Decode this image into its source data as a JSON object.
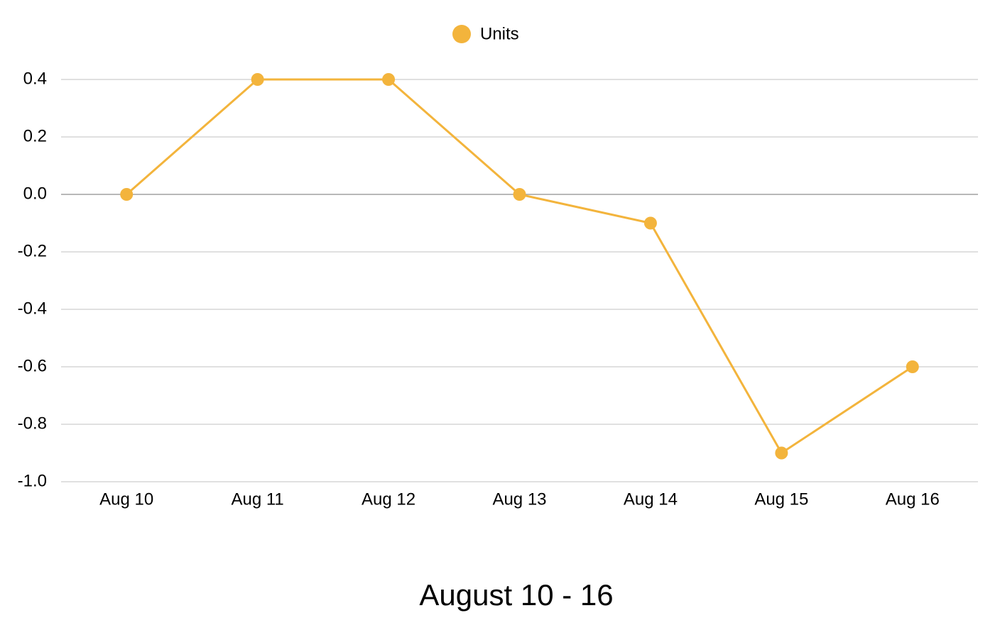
{
  "chart_data": {
    "type": "line",
    "x": [
      "Aug 10",
      "Aug 11",
      "Aug 12",
      "Aug 13",
      "Aug 14",
      "Aug 15",
      "Aug 16"
    ],
    "series": [
      {
        "name": "Units",
        "color": "#f3b43c",
        "values": [
          0,
          0.4,
          0.4,
          0,
          -0.1,
          -0.9,
          -0.6
        ]
      }
    ],
    "ylim": [
      -1,
      0.4
    ],
    "yticks": [
      0.4,
      0.2,
      {
        "value": 0,
        "label": "0.0"
      },
      -0.2,
      -0.4,
      -0.6,
      -0.8,
      {
        "value": -1,
        "label": "-1.0"
      }
    ],
    "grid": true,
    "legend": "top",
    "x_label": "August 10 - 16"
  }
}
